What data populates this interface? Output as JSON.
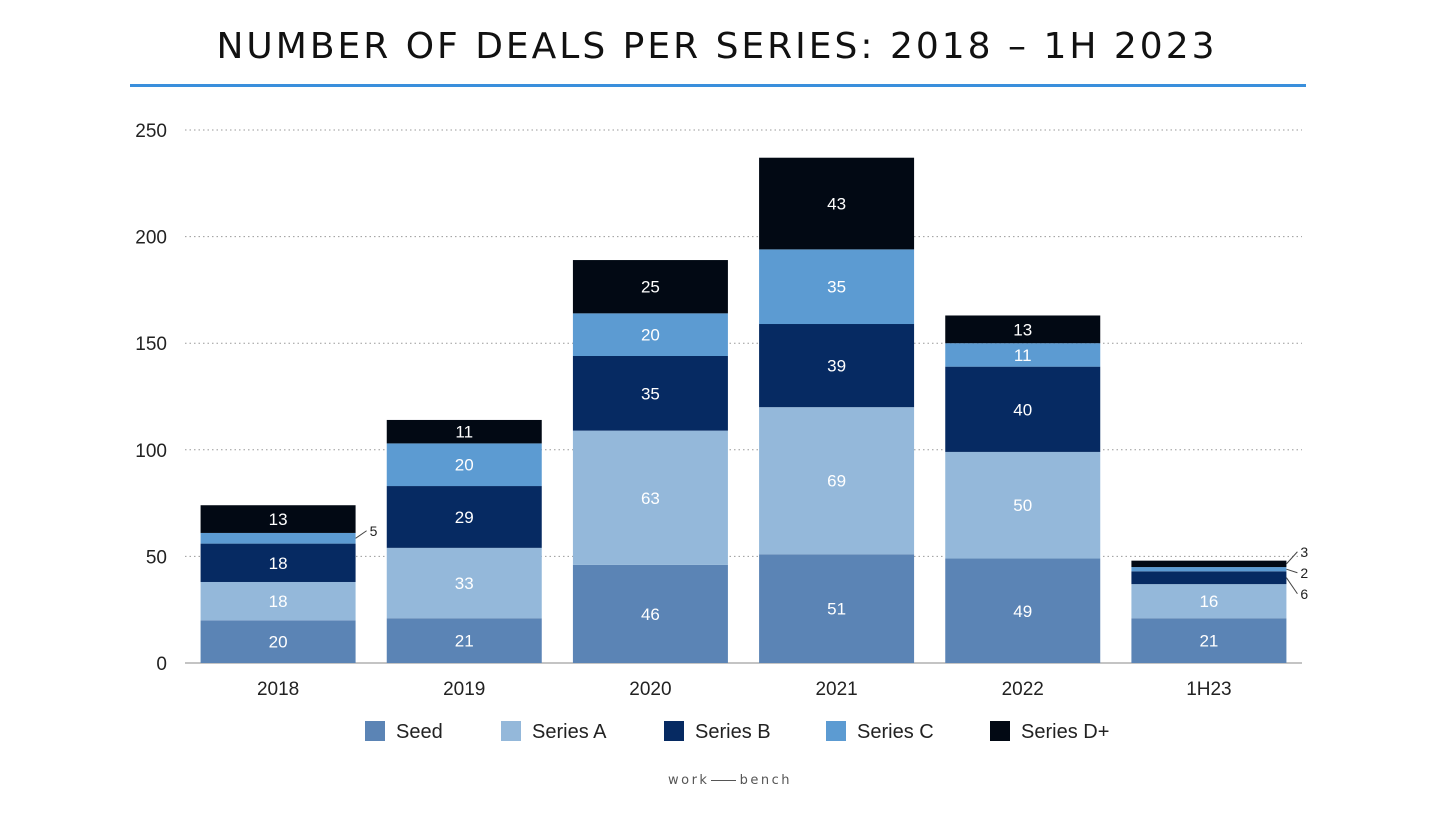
{
  "chart_data": {
    "type": "bar",
    "stacked": true,
    "title": "NUMBER OF DEALS PER SERIES: 2018 – 1H 2023",
    "xlabel": "",
    "ylabel": "",
    "ylim": [
      0,
      250
    ],
    "yticks": [
      0,
      50,
      100,
      150,
      200,
      250
    ],
    "grid": true,
    "legend_position": "bottom",
    "categories": [
      "2018",
      "2019",
      "2020",
      "2021",
      "2022",
      "1H23"
    ],
    "series": [
      {
        "name": "Seed",
        "color": "#5b84b5",
        "values": [
          20,
          21,
          46,
          51,
          49,
          21
        ]
      },
      {
        "name": "Series A",
        "color": "#94b8da",
        "values": [
          18,
          33,
          63,
          69,
          50,
          16
        ]
      },
      {
        "name": "Series B",
        "color": "#062a62",
        "values": [
          18,
          29,
          35,
          39,
          40,
          6
        ]
      },
      {
        "name": "Series C",
        "color": "#5c9bd2",
        "values": [
          5,
          20,
          20,
          35,
          11,
          2
        ]
      },
      {
        "name": "Series D+",
        "color": "#020914",
        "values": [
          13,
          11,
          25,
          43,
          13,
          3
        ]
      }
    ]
  },
  "brand": {
    "left": "work",
    "right": "bench"
  }
}
